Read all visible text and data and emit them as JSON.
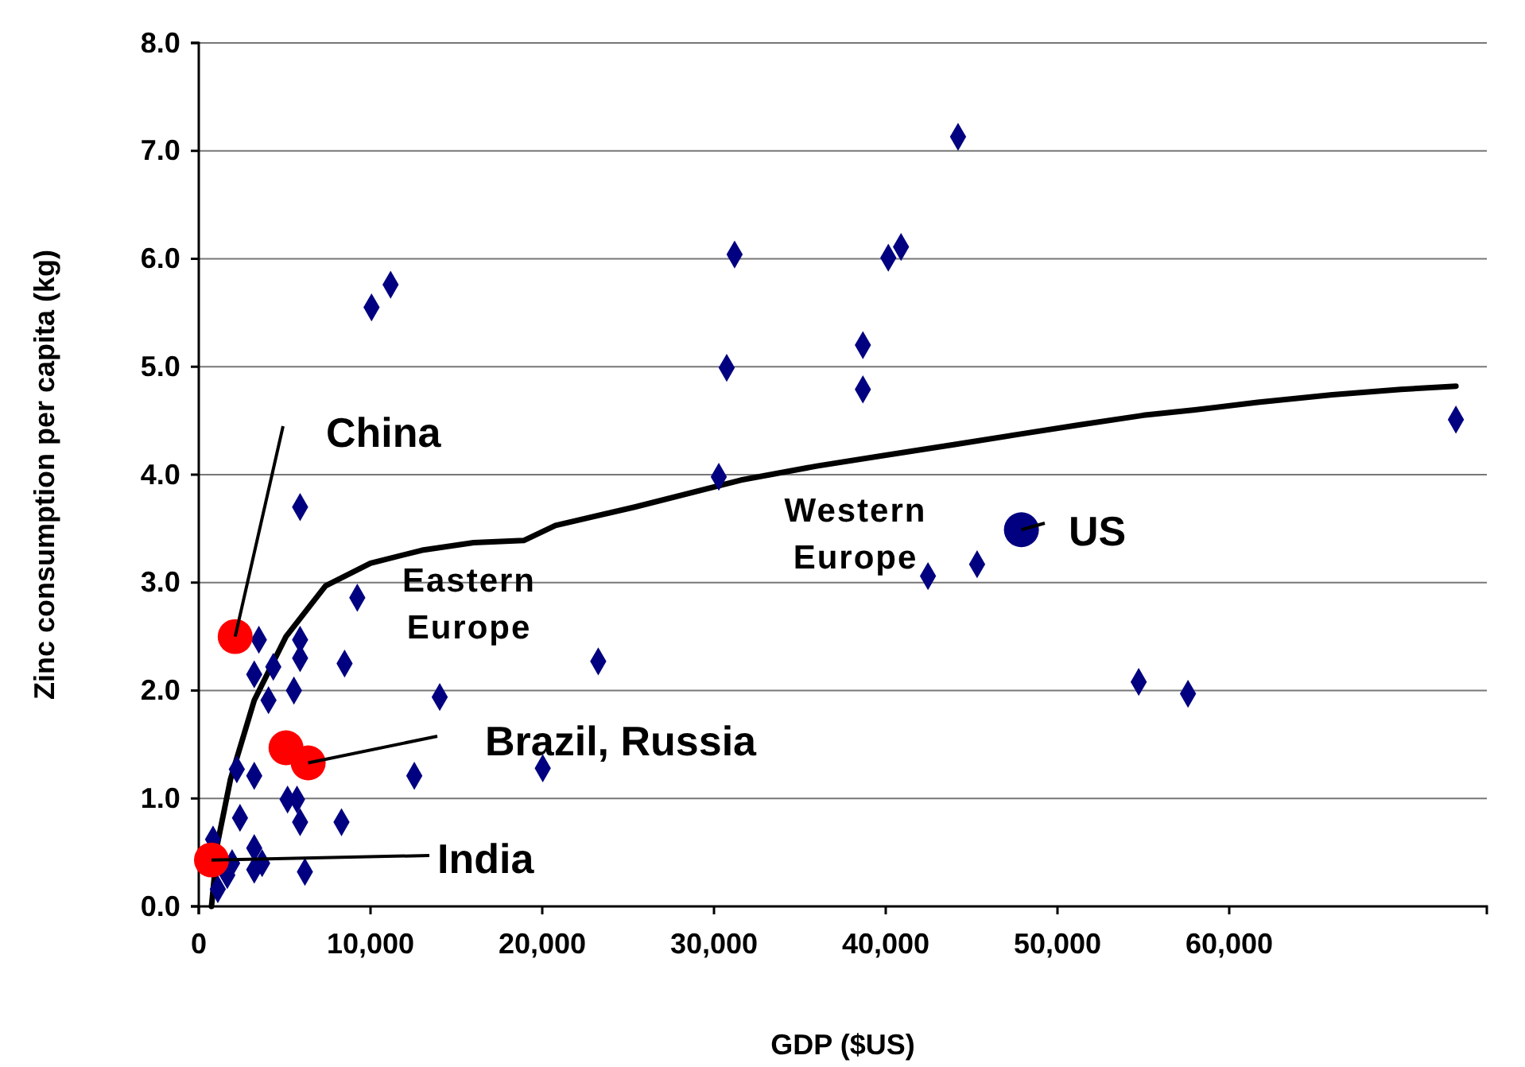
{
  "chart_data": {
    "type": "scatter",
    "xlabel": "GDP ($US)",
    "ylabel": "Zinc consumption per capita (kg)",
    "xlim": [
      0,
      75000
    ],
    "xticks": [
      {
        "value": 0,
        "label": "0"
      },
      {
        "value": 10000,
        "label": "10,000"
      },
      {
        "value": 20000,
        "label": "20,000"
      },
      {
        "value": 30000,
        "label": "30,000"
      },
      {
        "value": 40000,
        "label": "40,000"
      },
      {
        "value": 50000,
        "label": "50,000"
      },
      {
        "value": 60000,
        "label": "60,000"
      }
    ],
    "ylim": [
      0,
      8
    ],
    "yticks": [
      {
        "value": 0,
        "label": "0.0"
      },
      {
        "value": 1,
        "label": "1.0"
      },
      {
        "value": 2,
        "label": "2.0"
      },
      {
        "value": 3,
        "label": "3.0"
      },
      {
        "value": 4,
        "label": "4.0"
      },
      {
        "value": 5,
        "label": "5.0"
      },
      {
        "value": 6,
        "label": "6.0"
      },
      {
        "value": 7,
        "label": "7.0"
      },
      {
        "value": 8,
        "label": "8.0"
      }
    ],
    "grid": "y",
    "series": [
      {
        "marker": "diamond",
        "color": "#000080",
        "x": [
          9230,
          3500,
          5900,
          3230,
          4340,
          5900,
          8490,
          4060,
          5540,
          14030,
          2215,
          3230,
          12550,
          5170,
          5720,
          2400,
          5900,
          8310,
          830,
          3230,
          1940,
          1660,
          3230,
          3690,
          6180,
          1110,
          23260,
          20030,
          10060,
          11170,
          5900,
          44210,
          31200,
          40150,
          40890,
          38670,
          30740,
          38670,
          30280,
          42460,
          45320,
          73200,
          54730,
          57600
        ],
        "values": [
          2.86,
          2.47,
          2.47,
          2.15,
          2.22,
          2.3,
          2.25,
          1.91,
          2.0,
          1.94,
          1.27,
          1.21,
          1.21,
          0.99,
          0.99,
          0.82,
          0.78,
          0.78,
          0.62,
          0.54,
          0.4,
          0.29,
          0.34,
          0.4,
          0.32,
          0.16,
          2.27,
          1.28,
          5.55,
          5.76,
          3.7,
          7.13,
          6.04,
          6.01,
          6.11,
          5.2,
          4.99,
          4.79,
          3.98,
          3.06,
          3.17,
          4.51,
          2.08,
          1.97
        ]
      },
      {
        "type": "line",
        "marker": "none",
        "color": "#000000",
        "x": [
          740,
          1100,
          1850,
          3230,
          5080,
          7380,
          10000,
          13000,
          16000,
          18920,
          20770,
          25380,
          31570,
          36000,
          40000,
          44030,
          48000,
          51230,
          55000,
          58000,
          61660,
          66000,
          70000,
          73200
        ],
        "values": [
          0,
          0.59,
          1.18,
          1.91,
          2.5,
          2.97,
          3.18,
          3.3,
          3.37,
          3.39,
          3.53,
          3.7,
          3.95,
          4.08,
          4.18,
          4.28,
          4.38,
          4.46,
          4.55,
          4.6,
          4.67,
          4.74,
          4.79,
          4.82
        ]
      },
      {
        "marker": "circle",
        "color": "#ff0000",
        "x": [
          2120,
          5080,
          6370,
          740
        ],
        "values": [
          2.5,
          1.47,
          1.33,
          0.43
        ]
      },
      {
        "marker": "circle",
        "color": "#000080",
        "x": [
          47900
        ],
        "values": [
          3.49
        ]
      }
    ],
    "annotations": [
      {
        "text": "China",
        "x": 2120,
        "y": 2.5
      },
      {
        "text": "Brazil, Russia",
        "x": 6370,
        "y": 1.33
      },
      {
        "text": "India",
        "x": 740,
        "y": 0.43
      },
      {
        "text": "US",
        "x": 47900,
        "y": 3.49
      },
      "Eastern\nEurope",
      "Western\nEurope"
    ]
  }
}
